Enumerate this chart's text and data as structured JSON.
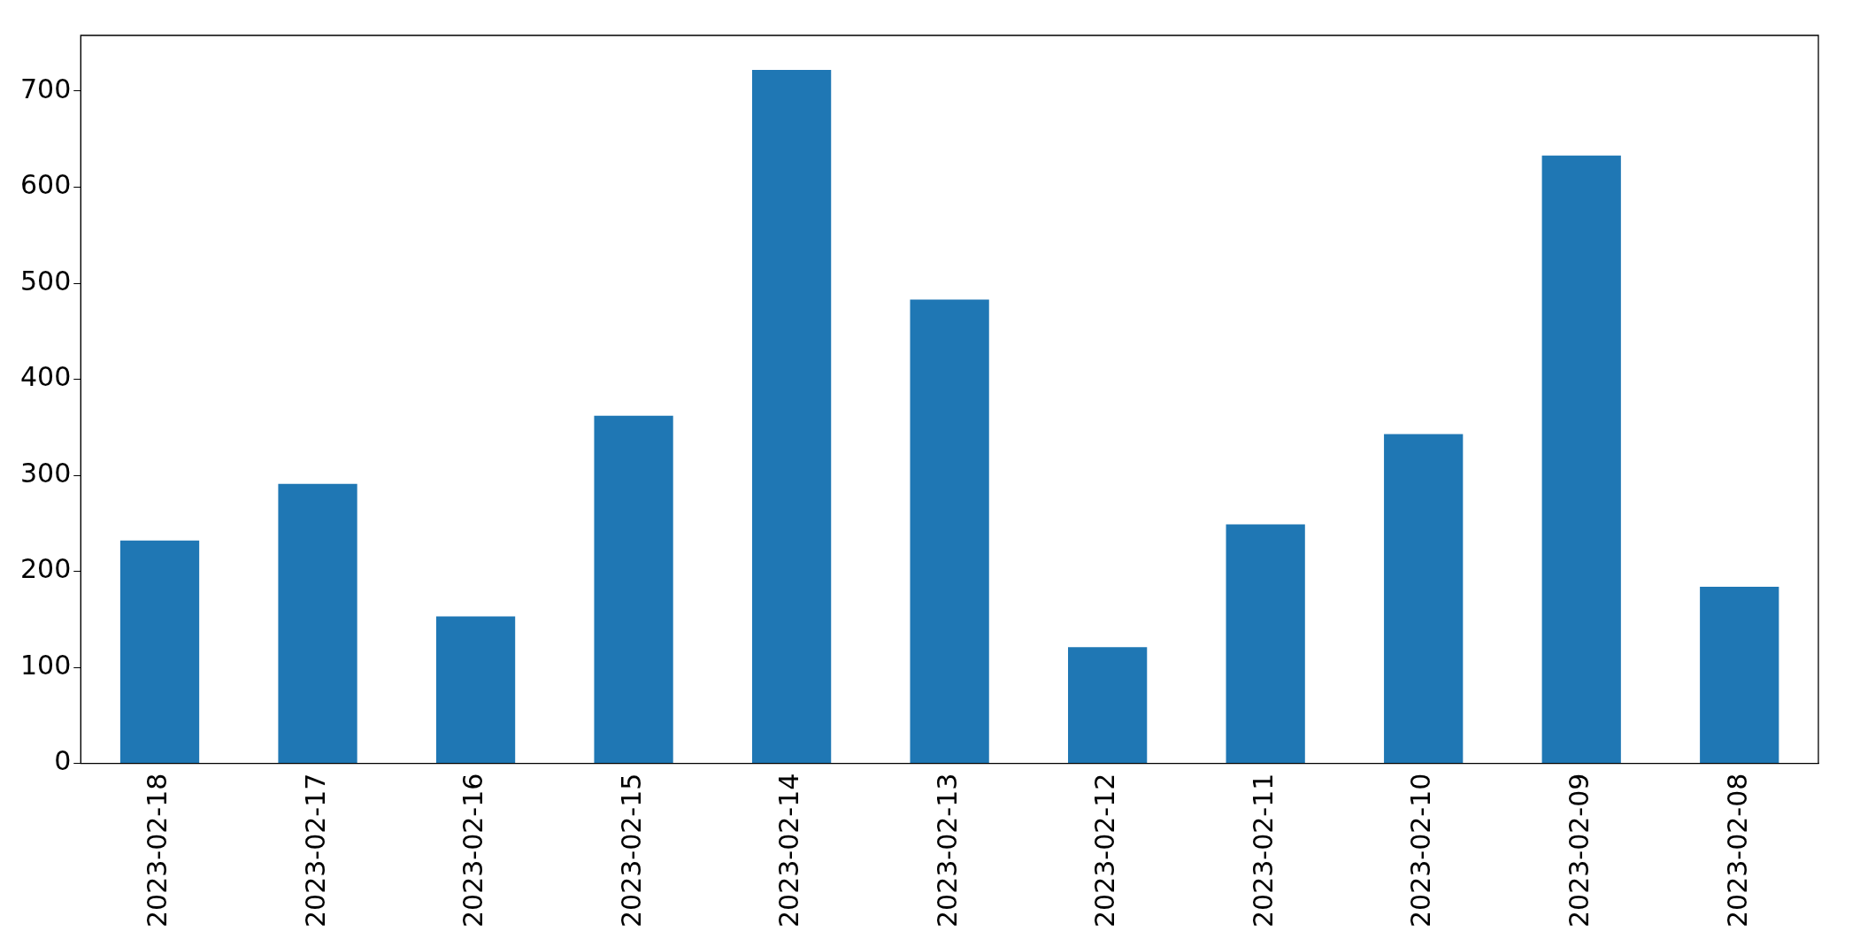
{
  "chart_data": {
    "type": "bar",
    "categories": [
      "2023-02-18",
      "2023-02-17",
      "2023-02-16",
      "2023-02-15",
      "2023-02-14",
      "2023-02-13",
      "2023-02-12",
      "2023-02-11",
      "2023-02-10",
      "2023-02-09",
      "2023-02-08"
    ],
    "values": [
      232,
      291,
      153,
      362,
      722,
      483,
      121,
      249,
      343,
      633,
      184
    ],
    "color": "#1f77b4",
    "ylim": [
      0,
      758
    ],
    "yticks": [
      0,
      100,
      200,
      300,
      400,
      500,
      600,
      700
    ],
    "grid": false,
    "legend": false
  }
}
